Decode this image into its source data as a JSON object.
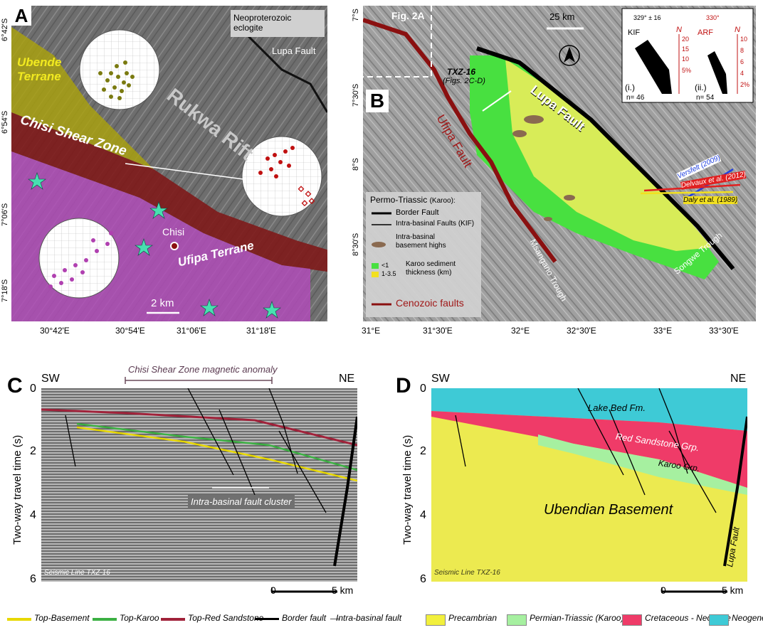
{
  "panelA": {
    "letter": "A",
    "legend_eclogite": "Neoproterozoic eclogite",
    "ubende": "Ubende Terrane",
    "rukwa": "Rukwa Rift",
    "lupa_fault": "Lupa Fault",
    "chisi_shear": "Chisi Shear Zone",
    "ufipa": "Ufipa Terrane",
    "chisi": "Chisi",
    "scale": "2 km",
    "lat_ticks": [
      "6°42'S",
      "6°54'S",
      "7°06'S",
      "7°18'S"
    ],
    "lon_ticks": [
      "30°42'E",
      "30°54'E",
      "31°06'E",
      "31°18'E"
    ]
  },
  "panelB": {
    "letter": "B",
    "fig2a": "Fig. 2A",
    "scale": "25 km",
    "txz": "TXZ-16",
    "txz_ref": "(Figs. 2C-D)",
    "lupa": "Lupa Fault",
    "ufipa": "Ufipa Fault",
    "msangano": "Msangano Trough",
    "songwe": "Songwe Trough",
    "versfelt": "Versfelt (2009)",
    "delvaux": "Delvaux et al. (2012)",
    "daly": "Daly et al. (1989)",
    "lat_ticks": [
      "7°S",
      "7°30'S",
      "8°S",
      "8°30'S"
    ],
    "lon_ticks": [
      "31°E",
      "31°30'E",
      "32°E",
      "32°30'E",
      "33°E",
      "33°30'E"
    ],
    "legend": {
      "title": "Permo-Triassic",
      "title_sub": "(Karoo):",
      "border": "Border Fault",
      "intra": "Intra-basinal Faults (KIF)",
      "highs_1": "Intra-basinal",
      "highs_2": "basement highs",
      "thick_lt1": "<1",
      "thick_range": "1-3.5",
      "thick_1": "Karoo sediment",
      "thick_2": "thickness (km)",
      "cenozoic": "Cenozoic faults"
    },
    "rose": {
      "i_label": "(i.)",
      "ii_label": "(ii.)",
      "i_n": "n= 46",
      "ii_n": "n= 54",
      "i_dir": "329° ± 16",
      "ii_dir": "330°",
      "i_name": "KIF",
      "ii_name": "ARF",
      "north": "N",
      "i_ticks": [
        "20",
        "15",
        "10",
        "5%"
      ],
      "ii_ticks": [
        "10",
        "8",
        "6",
        "4",
        "2%"
      ]
    }
  },
  "panelC": {
    "letter": "C",
    "sw": "SW",
    "ne": "NE",
    "anomaly": "Chisi Shear Zone magnetic anomaly",
    "cluster": "Intra-basinal fault cluster",
    "line": "Seismic Line TXZ-16",
    "ylabel": "Two-way travel time (s)",
    "yticks": [
      "0",
      "2",
      "4",
      "6"
    ],
    "scale_0": "0",
    "scale_5": "5 km"
  },
  "panelD": {
    "letter": "D",
    "sw": "SW",
    "ne": "NE",
    "lake_bed": "Lake Bed Fm.",
    "red_sandstone": "Red Sandstone Grp.",
    "karoo": "Karoo Grp.",
    "basement": "Ubendian Basement",
    "lupa": "Lupa Fault",
    "line": "Seismic Line TXZ-16",
    "ylabel": "Two-way travel time (s)",
    "yticks": [
      "0",
      "2",
      "4",
      "6"
    ],
    "scale_0": "0",
    "scale_5": "5 km"
  },
  "legend_bottom_left": [
    {
      "label": "Top-Basement",
      "color": "#e8d800"
    },
    {
      "label": "Top-Karoo",
      "color": "#3cb043"
    },
    {
      "label": "Top-Red Sandstone",
      "color": "#a0223a"
    },
    {
      "label": "Border fault",
      "color": "#000000"
    },
    {
      "label": "Intra-basinal fault",
      "color": "#555555"
    }
  ],
  "legend_bottom_right": [
    {
      "label": "Precambrian",
      "color": "#f2f03c"
    },
    {
      "label": "Permian-Triassic (Karoo)",
      "color": "#a6f0a0"
    },
    {
      "label": "Cretaceous - Neogene",
      "color": "#ef3b68"
    },
    {
      "label": "Neogene",
      "color": "#3ecad6"
    }
  ]
}
